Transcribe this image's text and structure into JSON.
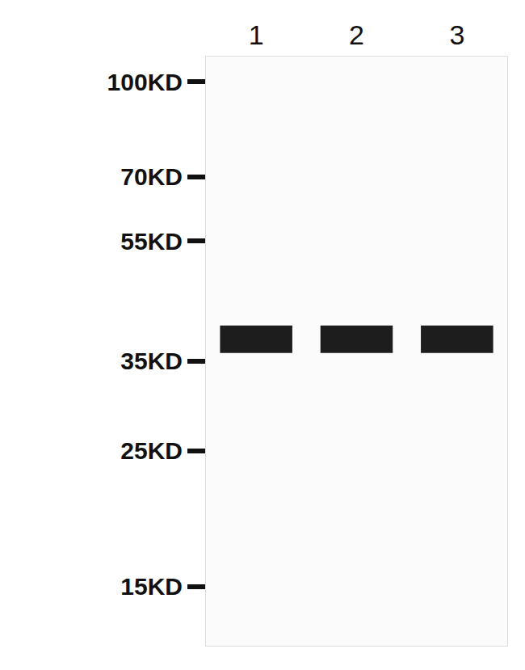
{
  "chart_data": {
    "type": "blot",
    "categories": [
      "1",
      "2",
      "3"
    ],
    "values": [
      38,
      38,
      38
    ],
    "color": "#111111",
    "log": "y",
    "grid": false,
    "ylim": [
      12,
      110
    ],
    "yticks": [
      {
        "value": 100,
        "label": "100KD"
      },
      {
        "value": 70,
        "label": "70KD"
      },
      {
        "value": 55,
        "label": "55KD"
      },
      {
        "value": 35,
        "label": "35KD"
      },
      {
        "value": 25,
        "label": "25KD"
      },
      {
        "value": 15,
        "label": "15KD"
      }
    ]
  }
}
